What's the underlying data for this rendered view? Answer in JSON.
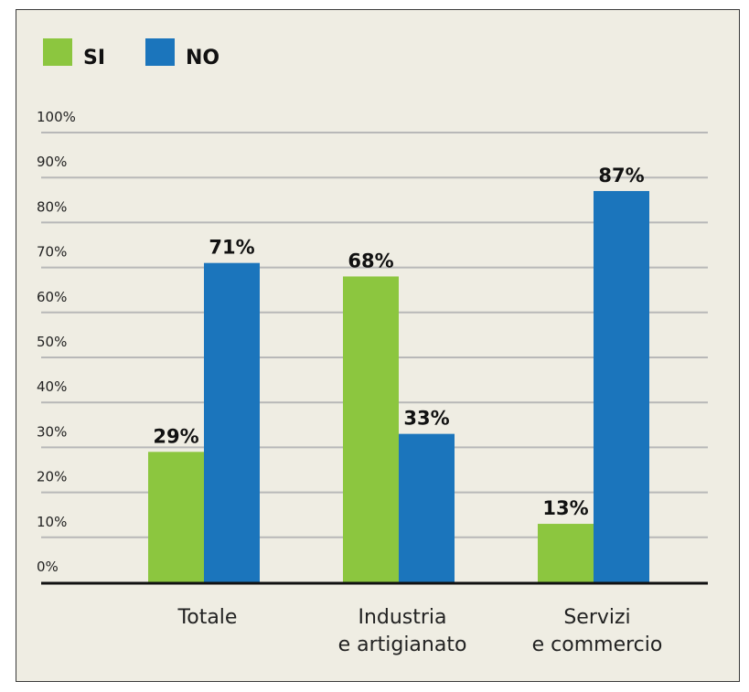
{
  "chart_data": {
    "type": "bar",
    "categories": [
      [
        "Totale"
      ],
      [
        "Industria",
        "e artigianato"
      ],
      [
        "Servizi",
        "e commercio"
      ]
    ],
    "series": [
      {
        "name": "SI",
        "color": "#8cc63f",
        "values": [
          29,
          68,
          13
        ],
        "labels": [
          "29%",
          "68%",
          "13%"
        ]
      },
      {
        "name": "NO",
        "color": "#1b75bc",
        "values": [
          71,
          33,
          87
        ],
        "labels": [
          "71%",
          "33%",
          "87%"
        ]
      }
    ],
    "ylim": [
      0,
      100
    ],
    "yticks": [
      {
        "value": 0,
        "label": "0%"
      },
      {
        "value": 10,
        "label": "10%"
      },
      {
        "value": 20,
        "label": "20%"
      },
      {
        "value": 30,
        "label": "30%"
      },
      {
        "value": 40,
        "label": "40%"
      },
      {
        "value": 50,
        "label": "50%"
      },
      {
        "value": 60,
        "label": "60%"
      },
      {
        "value": 70,
        "label": "70%"
      },
      {
        "value": 80,
        "label": "80%"
      },
      {
        "value": 90,
        "label": "90%"
      },
      {
        "value": 100,
        "label": "100%"
      }
    ],
    "grid": true,
    "legend_position": "top-left"
  }
}
